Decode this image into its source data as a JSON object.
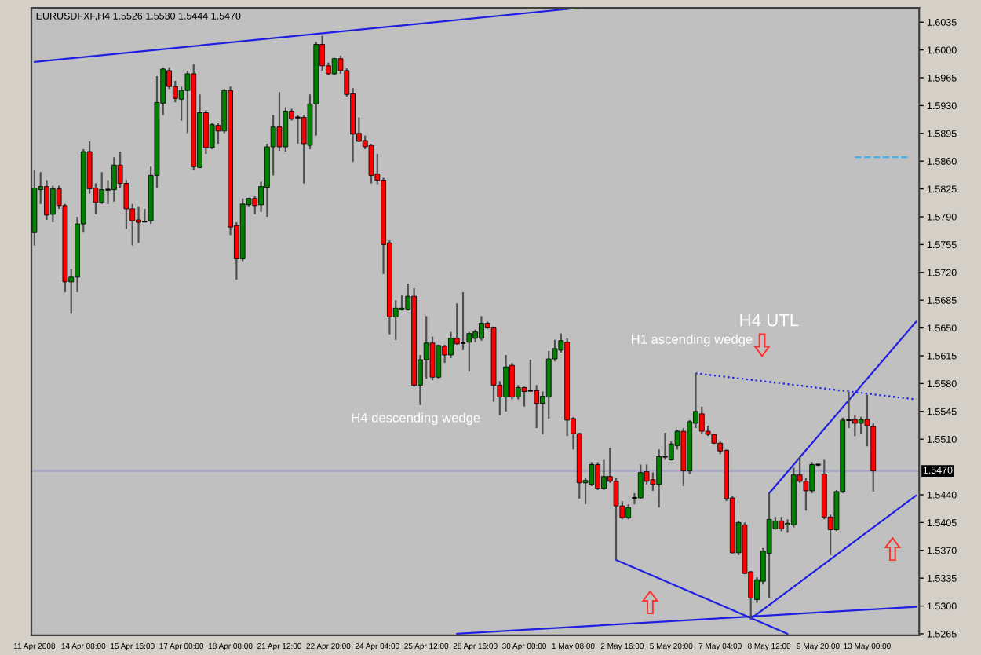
{
  "chart_data": {
    "type": "candlestick",
    "title": "EURUSDFXF,H4 1.5526 1.5530 1.5444 1.5470",
    "annotations": [
      "H4 descending wedge",
      "H1 ascending wedge",
      "H4 UTL"
    ],
    "categories": [
      "11 Apr 2008",
      null,
      null,
      null,
      null,
      null,
      null,
      null,
      "14 Apr 08:00",
      null,
      null,
      null,
      null,
      null,
      null,
      null,
      "15 Apr 16:00",
      null,
      null,
      null,
      null,
      null,
      null,
      null,
      "17 Apr 00:00",
      null,
      null,
      null,
      null,
      null,
      null,
      null,
      "18 Apr 08:00",
      null,
      null,
      null,
      null,
      null,
      null,
      null,
      "21 Apr 12:00",
      null,
      null,
      null,
      null,
      null,
      null,
      null,
      "22 Apr 20:00",
      null,
      null,
      null,
      null,
      null,
      null,
      null,
      "24 Apr 04:00",
      null,
      null,
      null,
      null,
      null,
      null,
      null,
      "25 Apr 12:00",
      null,
      null,
      null,
      null,
      null,
      null,
      null,
      "28 Apr 16:00",
      null,
      null,
      null,
      null,
      null,
      null,
      null,
      "30 Apr 00:00",
      null,
      null,
      null,
      null,
      null,
      null,
      null,
      "1 May 08:00",
      null,
      null,
      null,
      null,
      null,
      null,
      null,
      "2 May 16:00",
      null,
      null,
      null,
      null,
      null,
      null,
      null,
      "5 May 20:00",
      null,
      null,
      null,
      null,
      null,
      null,
      null,
      "7 May 04:00",
      null,
      null,
      null,
      null,
      null,
      null,
      null,
      "8 May 12:00",
      null,
      null,
      null,
      null,
      null,
      null,
      null,
      "9 May 20:00",
      null,
      null,
      null,
      null,
      null,
      null,
      null,
      "13 May 00:00",
      null,
      null,
      null,
      null,
      null,
      null,
      null,
      null
    ],
    "series": [
      {
        "colors": [
          "#008000",
          "#008000",
          "#ff0000",
          "#008000",
          "#ff0000",
          "#ff0000",
          "#008000",
          "#008000",
          "#008000",
          "#ff0000",
          "#ff0000",
          "#008000",
          "#000000",
          "#008000",
          "#ff0000",
          "#ff0000",
          "#ff0000",
          "#ff0000",
          "#000000",
          "#008000",
          "#008000",
          "#008000",
          "#ff0000",
          "#ff0000",
          "#008000",
          "#008000",
          "#ff0000",
          "#008000",
          "#ff0000",
          "#008000",
          "#ff0000",
          "#008000",
          "#ff0000",
          "#ff0000",
          "#008000",
          "#008000",
          "#ff0000",
          "#008000",
          "#008000",
          "#008000",
          "#ff0000",
          "#008000",
          "#ff0000",
          "#000000",
          "#ff0000",
          "#008000",
          "#008000",
          "#ff0000",
          "#ff0000",
          "#008000",
          "#ff0000",
          "#ff0000",
          "#ff0000",
          "#ff0000",
          "#ff0000",
          "#ff0000",
          "#ff0000",
          "#ff0000",
          "#ff0000",
          "#008000",
          "#008000",
          "#008000",
          "#ff0000",
          "#008000",
          "#008000",
          "#ff0000",
          "#008000",
          "#ff0000",
          "#008000",
          "#ff0000",
          "#000000",
          "#008000",
          "#008000",
          "#008000",
          "#ff0000",
          "#ff0000",
          "#ff0000",
          "#008000",
          "#ff0000",
          "#008000",
          "#ff0000",
          "#000000",
          "#ff0000",
          "#008000",
          "#008000",
          "#008000",
          "#008000",
          "#ff0000",
          "#ff0000",
          "#ff0000",
          "#008000",
          "#008000",
          "#ff0000",
          "#008000",
          "#ff0000",
          "#ff0000",
          "#ff0000",
          "#008000",
          "#000000",
          "#008000",
          "#ff0000",
          "#ff0000",
          "#008000",
          "#000000",
          "#008000",
          "#008000",
          "#ff0000",
          "#008000",
          "#008000",
          "#ff0000",
          "#ff0000",
          "#ff0000",
          "#ff0000",
          "#ff0000",
          "#ff0000",
          "#008000",
          "#ff0000",
          "#ff0000",
          "#008000",
          "#008000",
          "#008000",
          "#008000",
          "#ff0000",
          "#008000",
          "#008000",
          "#ff0000",
          "#ff0000",
          "#008000",
          "#000000",
          "#ff0000",
          "#ff0000",
          "#008000",
          "#008000",
          "#000000",
          "#ff0000",
          "#008000",
          "#ff0000",
          "#ff0000",
          null,
          null,
          null,
          null,
          null,
          null,
          null
        ],
        "ohlc": [
          [
            1.577,
            1.5849,
            1.5754,
            1.5826
          ],
          [
            1.5824,
            1.5846,
            1.5806,
            1.5828
          ],
          [
            1.5828,
            1.5836,
            1.5786,
            1.5792
          ],
          [
            1.5793,
            1.5829,
            1.5783,
            1.5825
          ],
          [
            1.5825,
            1.5829,
            1.58,
            1.5804
          ],
          [
            1.5804,
            1.5806,
            1.5695,
            1.5708
          ],
          [
            1.5708,
            1.5724,
            1.5668,
            1.5714
          ],
          [
            1.5714,
            1.579,
            1.5695,
            1.5781
          ],
          [
            1.5781,
            1.5875,
            1.577,
            1.5872
          ],
          [
            1.5872,
            1.5885,
            1.5819,
            1.5825
          ],
          [
            1.5826,
            1.5832,
            1.5793,
            1.5808
          ],
          [
            1.5808,
            1.5846,
            1.5806,
            1.5824
          ],
          [
            1.5824,
            1.5836,
            1.5806,
            1.5824
          ],
          [
            1.5824,
            1.5865,
            1.5809,
            1.5855
          ],
          [
            1.5855,
            1.5872,
            1.5826,
            1.5832
          ],
          [
            1.5832,
            1.5836,
            1.5775,
            1.58
          ],
          [
            1.58,
            1.5806,
            1.5754,
            1.5785
          ],
          [
            1.5786,
            1.5803,
            1.5757,
            1.5783
          ],
          [
            1.5784,
            1.58,
            1.5783,
            1.5784
          ],
          [
            1.5785,
            1.5853,
            1.5781,
            1.5842
          ],
          [
            1.5842,
            1.5967,
            1.5826,
            1.5934
          ],
          [
            1.5933,
            1.5978,
            1.5918,
            1.5976
          ],
          [
            1.5974,
            1.5978,
            1.5951,
            1.5954
          ],
          [
            1.5954,
            1.5961,
            1.5934,
            1.5939
          ],
          [
            1.5938,
            1.5954,
            1.5911,
            1.5949
          ],
          [
            1.5949,
            1.5974,
            1.5895,
            1.597
          ],
          [
            1.597,
            1.5982,
            1.5849,
            1.5853
          ],
          [
            1.5852,
            1.5944,
            1.5851,
            1.5921
          ],
          [
            1.5921,
            1.5924,
            1.5869,
            1.5877
          ],
          [
            1.5877,
            1.5908,
            1.5875,
            1.5906
          ],
          [
            1.5905,
            1.5908,
            1.5882,
            1.5898
          ],
          [
            1.5898,
            1.5951,
            1.5895,
            1.5949
          ],
          [
            1.5949,
            1.5954,
            1.5767,
            1.5777
          ],
          [
            1.5779,
            1.5783,
            1.5711,
            1.5737
          ],
          [
            1.5737,
            1.5813,
            1.5734,
            1.5806
          ],
          [
            1.5805,
            1.5814,
            1.5803,
            1.5813
          ],
          [
            1.5813,
            1.5816,
            1.5793,
            1.5804
          ],
          [
            1.5805,
            1.5834,
            1.5796,
            1.5828
          ],
          [
            1.5827,
            1.5882,
            1.579,
            1.5878
          ],
          [
            1.5878,
            1.5918,
            1.5842,
            1.5903
          ],
          [
            1.5903,
            1.5947,
            1.5873,
            1.5878
          ],
          [
            1.5878,
            1.5928,
            1.5872,
            1.5923
          ],
          [
            1.5923,
            1.5926,
            1.5911,
            1.5913
          ],
          [
            1.5915,
            1.5918,
            1.5882,
            1.5915
          ],
          [
            1.5915,
            1.5918,
            1.5832,
            1.5882
          ],
          [
            1.588,
            1.5944,
            1.5875,
            1.5932
          ],
          [
            1.5932,
            1.601,
            1.5892,
            1.6007
          ],
          [
            1.6007,
            1.6018,
            1.5974,
            1.598
          ],
          [
            1.598,
            1.5984,
            1.5969,
            1.597
          ],
          [
            1.597,
            1.599,
            1.5969,
            1.5989
          ],
          [
            1.5989,
            1.5993,
            1.597,
            1.5974
          ],
          [
            1.5974,
            1.5977,
            1.5941,
            1.5944
          ],
          [
            1.5945,
            1.5952,
            1.5859,
            1.5894
          ],
          [
            1.5895,
            1.5915,
            1.5884,
            1.5885
          ],
          [
            1.5886,
            1.5892,
            1.5875,
            1.5878
          ],
          [
            1.588,
            1.5882,
            1.5832,
            1.5842
          ],
          [
            1.5844,
            1.5869,
            1.5831,
            1.5836
          ],
          [
            1.5836,
            1.5839,
            1.5718,
            1.5755
          ],
          [
            1.5757,
            1.576,
            1.5642,
            1.5664
          ],
          [
            1.5664,
            1.5685,
            1.5635,
            1.5675
          ],
          [
            1.5673,
            1.5691,
            1.5672,
            1.5675
          ],
          [
            1.5673,
            1.5706,
            1.5672,
            1.569
          ],
          [
            1.569,
            1.57,
            1.5576,
            1.5578
          ],
          [
            1.5578,
            1.5616,
            1.5553,
            1.561
          ],
          [
            1.561,
            1.5665,
            1.5586,
            1.5631
          ],
          [
            1.5631,
            1.5639,
            1.5584,
            1.5588
          ],
          [
            1.5588,
            1.5629,
            1.5586,
            1.5628
          ],
          [
            1.5627,
            1.5629,
            1.5606,
            1.5616
          ],
          [
            1.5616,
            1.5645,
            1.5612,
            1.5637
          ],
          [
            1.5637,
            1.5681,
            1.5629,
            1.563
          ],
          [
            1.5631,
            1.5695,
            1.5622,
            1.5631
          ],
          [
            1.5632,
            1.5645,
            1.5595,
            1.5643
          ],
          [
            1.5637,
            1.5648,
            1.5632,
            1.5645
          ],
          [
            1.5637,
            1.5665,
            1.5634,
            1.5656
          ],
          [
            1.5656,
            1.5658,
            1.5649,
            1.565
          ],
          [
            1.565,
            1.5652,
            1.5557,
            1.5578
          ],
          [
            1.5578,
            1.5583,
            1.554,
            1.5563
          ],
          [
            1.5563,
            1.5616,
            1.5545,
            1.5601
          ],
          [
            1.5603,
            1.5606,
            1.556,
            1.5563
          ],
          [
            1.5563,
            1.5578,
            1.556,
            1.5575
          ],
          [
            1.5575,
            1.5576,
            1.5551,
            1.557
          ],
          [
            1.5571,
            1.561,
            1.557,
            1.5571
          ],
          [
            1.5571,
            1.5578,
            1.5524,
            1.5555
          ],
          [
            1.5555,
            1.557,
            1.5516,
            1.5564
          ],
          [
            1.5563,
            1.5621,
            1.5536,
            1.5611
          ],
          [
            1.5611,
            1.5635,
            1.5608,
            1.5624
          ],
          [
            1.5622,
            1.5643,
            1.5619,
            1.5634
          ],
          [
            1.5632,
            1.5637,
            1.5514,
            1.5534
          ],
          [
            1.5536,
            1.5538,
            1.5497,
            1.5517
          ],
          [
            1.5517,
            1.5518,
            1.5435,
            1.5455
          ],
          [
            1.5455,
            1.5461,
            1.5428,
            1.5458
          ],
          [
            1.5453,
            1.5481,
            1.5451,
            1.5478
          ],
          [
            1.5478,
            1.5481,
            1.5446,
            1.5448
          ],
          [
            1.5448,
            1.5484,
            1.5446,
            1.5463
          ],
          [
            1.5463,
            1.5499,
            1.5455,
            1.5457
          ],
          [
            1.5457,
            1.5461,
            1.5358,
            1.5426
          ],
          [
            1.5426,
            1.5432,
            1.5409,
            1.5411
          ],
          [
            1.5411,
            1.5428,
            1.5409,
            1.5424
          ],
          [
            1.5436,
            1.5442,
            1.5428,
            1.5436
          ],
          [
            1.5436,
            1.5478,
            1.5435,
            1.5468
          ],
          [
            1.5469,
            1.5478,
            1.5453,
            1.5457
          ],
          [
            1.5459,
            1.5468,
            1.5445,
            1.5453
          ],
          [
            1.5453,
            1.5497,
            1.5424,
            1.5488
          ],
          [
            1.5488,
            1.5518,
            1.5484,
            1.5488
          ],
          [
            1.5484,
            1.5507,
            1.5483,
            1.5504
          ],
          [
            1.5502,
            1.5522,
            1.5497,
            1.552
          ],
          [
            1.552,
            1.5524,
            1.5451,
            1.547
          ],
          [
            1.547,
            1.5534,
            1.5466,
            1.5532
          ],
          [
            1.553,
            1.5593,
            1.5524,
            1.5545
          ],
          [
            1.5542,
            1.5551,
            1.5517,
            1.552
          ],
          [
            1.552,
            1.5527,
            1.5514,
            1.5516
          ],
          [
            1.5516,
            1.5517,
            1.5504,
            1.5505
          ],
          [
            1.5505,
            1.5507,
            1.5491,
            1.5495
          ],
          [
            1.5496,
            1.5497,
            1.5432,
            1.5435
          ],
          [
            1.5436,
            1.5438,
            1.5366,
            1.5367
          ],
          [
            1.5367,
            1.5407,
            1.5364,
            1.5405
          ],
          [
            1.5402,
            1.5405,
            1.534,
            1.5341
          ],
          [
            1.5343,
            1.5344,
            1.5284,
            1.531
          ],
          [
            1.5308,
            1.5336,
            1.5304,
            1.5333
          ],
          [
            1.5331,
            1.5373,
            1.5327,
            1.5369
          ],
          [
            1.5366,
            1.5442,
            1.531,
            1.5409
          ],
          [
            1.5397,
            1.5412,
            1.5396,
            1.5407
          ],
          [
            1.5407,
            1.5412,
            1.5394,
            1.5397
          ],
          [
            1.5402,
            1.5409,
            1.5392,
            1.5404
          ],
          [
            1.5402,
            1.5474,
            1.5399,
            1.5465
          ],
          [
            1.5465,
            1.5488,
            1.5455,
            1.5457
          ],
          [
            1.5457,
            1.5461,
            1.542,
            1.5445
          ],
          [
            1.5445,
            1.5481,
            1.5442,
            1.5478
          ],
          [
            1.5478,
            1.5479,
            1.5476,
            1.5478
          ],
          [
            1.5466,
            1.5484,
            1.5409,
            1.5412
          ],
          [
            1.5412,
            1.5415,
            1.5364,
            1.5396
          ],
          [
            1.5396,
            1.5446,
            1.5394,
            1.5444
          ],
          [
            1.5444,
            1.5537,
            1.5442,
            1.5534
          ],
          [
            1.5534,
            1.557,
            1.5524,
            1.5534
          ],
          [
            1.5535,
            1.554,
            1.5514,
            1.553
          ],
          [
            1.553,
            1.5538,
            1.5517,
            1.5535
          ],
          [
            1.5535,
            1.5566,
            1.5501,
            1.5527
          ],
          [
            1.5526,
            1.553,
            1.5444,
            1.547
          ],
          null,
          null,
          null,
          null,
          null,
          null,
          null
        ]
      },
      {
        "type": "line",
        "color": "#2020e0",
        "values": [
          1.5985,
          null,
          null,
          null,
          null,
          null,
          null,
          null,
          null,
          null,
          null,
          null,
          null,
          null,
          null,
          null,
          null,
          null,
          null,
          null,
          null,
          null,
          null,
          null,
          null,
          null,
          null,
          null,
          null,
          null,
          null,
          null,
          null,
          null,
          null,
          null,
          null,
          null,
          null,
          null,
          null,
          null,
          null,
          null,
          null,
          null,
          null,
          null,
          null,
          null,
          null,
          null,
          null,
          null,
          null,
          null,
          null,
          null,
          null,
          null,
          null,
          null,
          null,
          null,
          null,
          null,
          null,
          null,
          null,
          null,
          null,
          null,
          null,
          null,
          null,
          null,
          null,
          null,
          null,
          null,
          null,
          null,
          null,
          null,
          null,
          null,
          null,
          null,
          null,
          1.6053,
          null,
          null,
          null,
          null,
          null,
          null,
          null,
          null,
          null,
          null,
          null,
          null,
          null,
          null,
          null,
          null,
          null,
          null,
          null,
          null,
          null,
          null,
          null,
          null,
          null,
          null,
          null,
          null,
          null,
          null,
          null,
          null,
          null,
          null,
          null,
          null,
          null,
          null,
          null,
          null,
          null,
          null,
          null,
          null,
          null,
          null,
          null,
          null,
          null,
          null,
          null,
          null,
          null,
          null,
          null
        ]
      },
      {
        "type": "line",
        "color": "#2020e0",
        "values": [
          null,
          null,
          null,
          null,
          null,
          null,
          null,
          null,
          null,
          null,
          null,
          null,
          null,
          null,
          null,
          null,
          null,
          null,
          null,
          null,
          null,
          null,
          null,
          null,
          null,
          null,
          null,
          null,
          null,
          null,
          null,
          null,
          null,
          null,
          null,
          null,
          null,
          null,
          null,
          null,
          null,
          null,
          null,
          null,
          null,
          null,
          null,
          null,
          null,
          null,
          null,
          null,
          null,
          null,
          null,
          null,
          null,
          null,
          null,
          null,
          null,
          null,
          null,
          null,
          null,
          null,
          null,
          null,
          null,
          1.5265,
          null,
          null,
          null,
          null,
          null,
          null,
          null,
          null,
          null,
          null,
          null,
          null,
          null,
          null,
          null,
          null,
          null,
          null,
          null,
          null,
          null,
          null,
          null,
          null,
          null,
          null,
          null,
          null,
          null,
          null,
          null,
          null,
          null,
          null,
          null,
          null,
          null,
          null,
          null,
          null,
          null,
          null,
          null,
          null,
          null,
          null,
          null,
          null,
          null,
          null,
          null,
          null,
          null,
          null,
          null,
          null,
          null,
          null,
          null,
          null,
          null,
          null,
          null,
          null,
          null,
          null,
          null,
          null,
          null,
          null,
          null,
          null,
          null,
          null,
          1.5299
        ]
      },
      {
        "type": "line",
        "color": "#2020e0",
        "values": [
          null,
          null,
          null,
          null,
          null,
          null,
          null,
          null,
          null,
          null,
          null,
          null,
          null,
          null,
          null,
          null,
          null,
          null,
          null,
          null,
          null,
          null,
          null,
          null,
          null,
          null,
          null,
          null,
          null,
          null,
          null,
          null,
          null,
          null,
          null,
          null,
          null,
          null,
          null,
          null,
          null,
          null,
          null,
          null,
          null,
          null,
          null,
          null,
          null,
          null,
          null,
          null,
          null,
          null,
          null,
          null,
          null,
          null,
          null,
          null,
          null,
          null,
          null,
          null,
          null,
          null,
          null,
          null,
          null,
          null,
          null,
          null,
          null,
          null,
          null,
          null,
          null,
          null,
          null,
          null,
          null,
          null,
          null,
          null,
          null,
          null,
          null,
          null,
          null,
          null,
          null,
          null,
          null,
          null,
          null,
          1.5358,
          null,
          null,
          null,
          null,
          null,
          null,
          null,
          null,
          null,
          null,
          null,
          null,
          null,
          null,
          null,
          null,
          null,
          null,
          null,
          null,
          null,
          null,
          null,
          null,
          null,
          null,
          null,
          1.5265,
          null,
          null,
          null,
          null,
          null,
          null,
          null,
          null,
          null,
          null,
          null,
          null,
          null,
          null,
          null,
          null,
          null,
          null,
          null,
          null,
          null
        ]
      },
      {
        "type": "line",
        "color": "#2020e0",
        "values": [
          null,
          null,
          null,
          null,
          null,
          null,
          null,
          null,
          null,
          null,
          null,
          null,
          null,
          null,
          null,
          null,
          null,
          null,
          null,
          null,
          null,
          null,
          null,
          null,
          null,
          null,
          null,
          null,
          null,
          null,
          null,
          null,
          null,
          null,
          null,
          null,
          null,
          null,
          null,
          null,
          null,
          null,
          null,
          null,
          null,
          null,
          null,
          null,
          null,
          null,
          null,
          null,
          null,
          null,
          null,
          null,
          null,
          null,
          null,
          null,
          null,
          null,
          null,
          null,
          null,
          null,
          null,
          null,
          null,
          null,
          null,
          null,
          null,
          null,
          null,
          null,
          null,
          null,
          null,
          null,
          null,
          null,
          null,
          null,
          null,
          null,
          null,
          null,
          null,
          null,
          null,
          null,
          null,
          null,
          null,
          null,
          null,
          null,
          null,
          null,
          null,
          null,
          null,
          null,
          null,
          null,
          null,
          null,
          null,
          null,
          null,
          null,
          null,
          null,
          null,
          null,
          null,
          1.5284,
          null,
          null,
          null,
          null,
          null,
          null,
          null,
          null,
          null,
          null,
          null,
          null,
          null,
          null,
          null,
          null,
          null,
          null,
          null,
          null,
          null,
          null,
          null,
          null,
          null,
          null,
          1.5439
        ]
      },
      {
        "type": "line",
        "color": "#2020e0",
        "values": [
          null,
          null,
          null,
          null,
          null,
          null,
          null,
          null,
          null,
          null,
          null,
          null,
          null,
          null,
          null,
          null,
          null,
          null,
          null,
          null,
          null,
          null,
          null,
          null,
          null,
          null,
          null,
          null,
          null,
          null,
          null,
          null,
          null,
          null,
          null,
          null,
          null,
          null,
          null,
          null,
          null,
          null,
          null,
          null,
          null,
          null,
          null,
          null,
          null,
          null,
          null,
          null,
          null,
          null,
          null,
          null,
          null,
          null,
          null,
          null,
          null,
          null,
          null,
          null,
          null,
          null,
          null,
          null,
          null,
          null,
          null,
          null,
          null,
          null,
          null,
          null,
          null,
          null,
          null,
          null,
          null,
          null,
          null,
          null,
          null,
          null,
          null,
          null,
          null,
          null,
          null,
          null,
          null,
          null,
          null,
          null,
          null,
          null,
          null,
          null,
          null,
          null,
          null,
          null,
          null,
          null,
          null,
          null,
          null,
          null,
          null,
          null,
          null,
          null,
          null,
          null,
          null,
          null,
          null,
          null,
          1.5442,
          null,
          null,
          null,
          null,
          null,
          null,
          null,
          null,
          null,
          null,
          null,
          null,
          null,
          null,
          null,
          null,
          null,
          null,
          null,
          null,
          null,
          null,
          null,
          1.5658
        ]
      },
      {
        "type": "line",
        "color": "#2020e0",
        "line_style": "dotted",
        "values": [
          null,
          null,
          null,
          null,
          null,
          null,
          null,
          null,
          null,
          null,
          null,
          null,
          null,
          null,
          null,
          null,
          null,
          null,
          null,
          null,
          null,
          null,
          null,
          null,
          null,
          null,
          null,
          null,
          null,
          null,
          null,
          null,
          null,
          null,
          null,
          null,
          null,
          null,
          null,
          null,
          null,
          null,
          null,
          null,
          null,
          null,
          null,
          null,
          null,
          null,
          null,
          null,
          null,
          null,
          null,
          null,
          null,
          null,
          null,
          null,
          null,
          null,
          null,
          null,
          null,
          null,
          null,
          null,
          null,
          null,
          null,
          null,
          null,
          null,
          null,
          null,
          null,
          null,
          null,
          null,
          null,
          null,
          null,
          null,
          null,
          null,
          null,
          null,
          null,
          null,
          null,
          null,
          null,
          null,
          null,
          null,
          null,
          null,
          null,
          null,
          null,
          null,
          null,
          null,
          null,
          null,
          null,
          null,
          1.5593,
          null,
          null,
          null,
          null,
          null,
          null,
          null,
          null,
          null,
          null,
          null,
          null,
          null,
          null,
          null,
          null,
          null,
          null,
          null,
          null,
          null,
          null,
          null,
          null,
          null,
          null,
          null,
          null,
          null,
          null,
          null,
          null,
          null,
          null,
          null,
          1.556
        ]
      },
      {
        "type": "line",
        "color": "#40b0f0",
        "line_style": "dashed",
        "values": [
          null,
          null,
          null,
          null,
          null,
          null,
          null,
          null,
          null,
          null,
          null,
          null,
          null,
          null,
          null,
          null,
          null,
          null,
          null,
          null,
          null,
          null,
          null,
          null,
          null,
          null,
          null,
          null,
          null,
          null,
          null,
          null,
          null,
          null,
          null,
          null,
          null,
          null,
          null,
          null,
          null,
          null,
          null,
          null,
          null,
          null,
          null,
          null,
          null,
          null,
          null,
          null,
          null,
          null,
          null,
          null,
          null,
          null,
          null,
          null,
          null,
          null,
          null,
          null,
          null,
          null,
          null,
          null,
          null,
          null,
          null,
          null,
          null,
          null,
          null,
          null,
          null,
          null,
          null,
          null,
          null,
          null,
          null,
          null,
          null,
          null,
          null,
          null,
          null,
          null,
          null,
          null,
          null,
          null,
          null,
          null,
          null,
          null,
          null,
          null,
          null,
          null,
          null,
          null,
          null,
          null,
          null,
          null,
          null,
          null,
          null,
          null,
          null,
          null,
          null,
          null,
          null,
          null,
          null,
          null,
          null,
          null,
          null,
          null,
          null,
          null,
          null,
          null,
          null,
          null,
          null,
          null,
          null,
          null,
          1.5865,
          null,
          null,
          null,
          null,
          null,
          null,
          null,
          null,
          1.5865,
          null
        ]
      }
    ],
    "ref_lines": [
      {
        "axis": "y",
        "value": 1.547,
        "label": "1.5470",
        "color": "#a8a8c8"
      }
    ],
    "ylim": [
      1.5263,
      1.6053
    ],
    "yticks": [
      1.6035,
      {
        "value": 1.6,
        "label": "1.6000"
      },
      1.5965,
      {
        "value": 1.593,
        "label": "1.5930"
      },
      1.5895,
      {
        "value": 1.586,
        "label": "1.5860"
      },
      1.5825,
      {
        "value": 1.579,
        "label": "1.5790"
      },
      1.5755,
      {
        "value": 1.572,
        "label": "1.5720"
      },
      1.5685,
      {
        "value": 1.565,
        "label": "1.5650"
      },
      1.5615,
      {
        "value": 1.558,
        "label": "1.5580"
      },
      1.5545,
      {
        "value": 1.551,
        "label": "1.5510"
      },
      {
        "value": 1.544,
        "label": "1.5440"
      },
      1.5405,
      {
        "value": 1.537,
        "label": "1.5370"
      },
      1.5335,
      {
        "value": 1.53,
        "label": "1.5300"
      },
      1.5265
    ]
  }
}
